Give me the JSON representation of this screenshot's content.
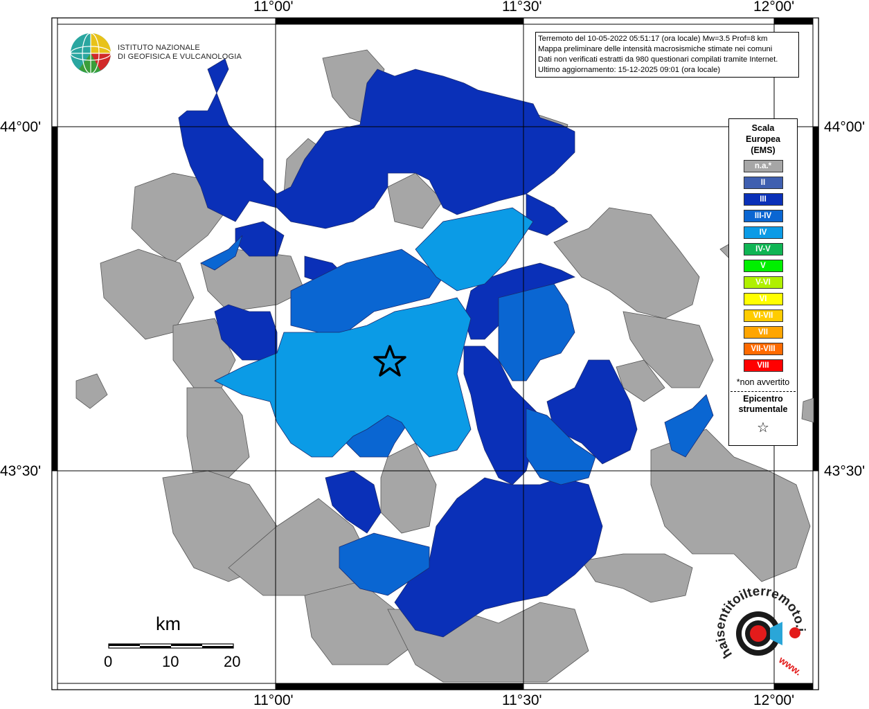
{
  "map": {
    "lon_labels": [
      "11°00'",
      "11°30'",
      "12°00'"
    ],
    "lat_labels": [
      "44°00'",
      "43°30'"
    ]
  },
  "info": {
    "line1": "Terremoto del 10-05-2022 05:51:17 (ora locale) Mw=3.5 Prof=8 km",
    "line2": "Mappa preliminare delle intensità macrosismiche stimate nei comuni",
    "line3": "Dati non verificati estratti da 980 questionari compilati tramite Internet.",
    "line4": "Ultimo aggiornamento: 15-12-2025 09:01 (ora locale)"
  },
  "logo": {
    "line1": "ISTITUTO NAZIONALE",
    "line2": "DI GEOFISICA E VULCANOLOGIA"
  },
  "legend": {
    "title_line1": "Scala",
    "title_line2": "Europea",
    "title_line3": "(EMS)",
    "items": [
      {
        "label": "n.a.*",
        "color": "#a6a6a6"
      },
      {
        "label": "II",
        "color": "#3f5fb0"
      },
      {
        "label": "III",
        "color": "#0a30b8"
      },
      {
        "label": "III-IV",
        "color": "#0a66d2"
      },
      {
        "label": "IV",
        "color": "#0b9be6"
      },
      {
        "label": "IV-V",
        "color": "#10b554"
      },
      {
        "label": "V",
        "color": "#00f000"
      },
      {
        "label": "V-VI",
        "color": "#b0f000"
      },
      {
        "label": "VI",
        "color": "#ffff00"
      },
      {
        "label": "VI-VII",
        "color": "#ffcc00"
      },
      {
        "label": "VII",
        "color": "#ffa500"
      },
      {
        "label": "VII-VIII",
        "color": "#ff6a00"
      },
      {
        "label": "VIII",
        "color": "#ff0000"
      }
    ],
    "note": "*non avvertito",
    "epi_line1": "Epicentro",
    "epi_line2": "strumentale",
    "epi_symbol": "☆"
  },
  "scale_bar": {
    "unit": "km",
    "ticks": [
      "0",
      "10",
      "20"
    ]
  },
  "brand": {
    "name": "haisentitoilterremoto.it",
    "url": "www."
  },
  "colors": {
    "gray": "#a6a6a6",
    "intensity_III": "#0a30b8",
    "intensity_IIIIV": "#0a66d2",
    "intensity_IV": "#0b9be6"
  }
}
